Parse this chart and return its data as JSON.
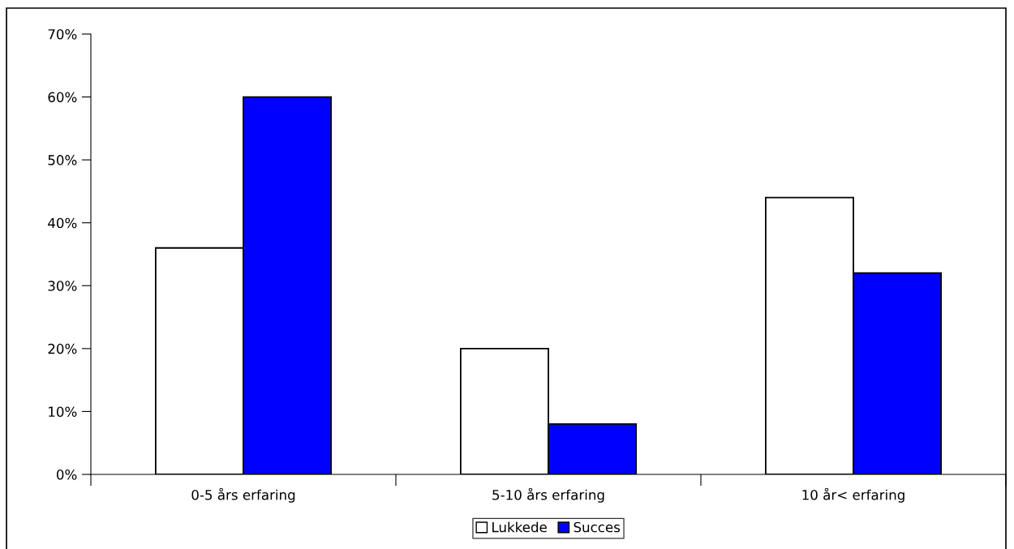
{
  "chart_data": {
    "type": "bar",
    "categories": [
      "0-5 års erfaring",
      "5-10 års erfaring",
      "10 år< erfaring"
    ],
    "series": [
      {
        "name": "Lukkede",
        "color": "#ffffff",
        "values": [
          36,
          20,
          44
        ]
      },
      {
        "name": "Succes",
        "color": "#0000ff",
        "values": [
          60,
          8,
          32
        ]
      }
    ],
    "ylim": [
      0,
      70
    ],
    "yticks": [
      {
        "value": 0,
        "label": "0%"
      },
      {
        "value": 10,
        "label": "10%"
      },
      {
        "value": 20,
        "label": "20%"
      },
      {
        "value": 30,
        "label": "30%"
      },
      {
        "value": 40,
        "label": "40%"
      },
      {
        "value": 50,
        "label": "50%"
      },
      {
        "value": 60,
        "label": "60%"
      },
      {
        "value": 70,
        "label": "70%"
      }
    ],
    "grid": false,
    "legend": "bottom"
  }
}
